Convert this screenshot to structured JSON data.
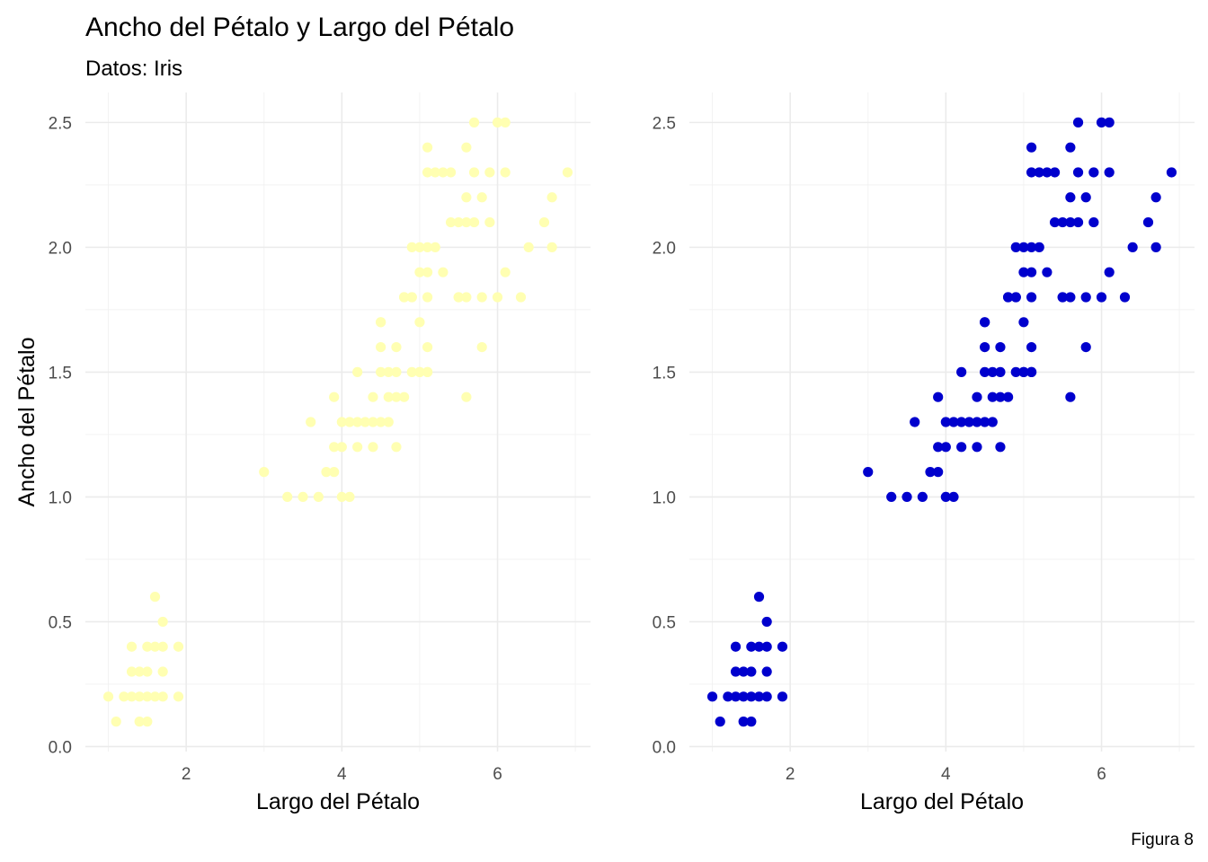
{
  "title": "Ancho del Pétalo y Largo del Pétalo",
  "subtitle": "Datos: Iris",
  "caption": "Figura 8",
  "colors": {
    "panel_left": "#FFFFB2",
    "panel_right": "#0000CD",
    "grid": "#EBEBEB"
  },
  "chart_data": [
    {
      "type": "scatter",
      "xlabel": "Largo del Pétalo",
      "ylabel": "Ancho del Pétalo",
      "x_ticks": [
        "2",
        "4",
        "6"
      ],
      "y_ticks": [
        "0.0",
        "0.5",
        "1.0",
        "1.5",
        "2.0",
        "2.5"
      ],
      "xlim": [
        0.705,
        7.195
      ],
      "ylim": [
        -0.02,
        2.62
      ],
      "grid": true,
      "color": "#FFFFB2",
      "points": [
        [
          1.0,
          0.2
        ],
        [
          1.1,
          0.1
        ],
        [
          1.2,
          0.2
        ],
        [
          1.3,
          0.2
        ],
        [
          1.3,
          0.3
        ],
        [
          1.3,
          0.4
        ],
        [
          1.4,
          0.2
        ],
        [
          1.4,
          0.3
        ],
        [
          1.4,
          0.1
        ],
        [
          1.5,
          0.2
        ],
        [
          1.5,
          0.4
        ],
        [
          1.5,
          0.1
        ],
        [
          1.5,
          0.3
        ],
        [
          1.6,
          0.2
        ],
        [
          1.6,
          0.4
        ],
        [
          1.6,
          0.6
        ],
        [
          1.7,
          0.2
        ],
        [
          1.7,
          0.3
        ],
        [
          1.7,
          0.4
        ],
        [
          1.7,
          0.5
        ],
        [
          1.9,
          0.2
        ],
        [
          1.9,
          0.4
        ],
        [
          3.0,
          1.1
        ],
        [
          3.3,
          1.0
        ],
        [
          3.5,
          1.0
        ],
        [
          3.6,
          1.3
        ],
        [
          3.7,
          1.0
        ],
        [
          3.8,
          1.1
        ],
        [
          3.9,
          1.1
        ],
        [
          3.9,
          1.2
        ],
        [
          3.9,
          1.4
        ],
        [
          4.0,
          1.0
        ],
        [
          4.0,
          1.2
        ],
        [
          4.0,
          1.3
        ],
        [
          4.1,
          1.0
        ],
        [
          4.1,
          1.3
        ],
        [
          4.2,
          1.2
        ],
        [
          4.2,
          1.3
        ],
        [
          4.2,
          1.5
        ],
        [
          4.3,
          1.3
        ],
        [
          4.4,
          1.2
        ],
        [
          4.4,
          1.3
        ],
        [
          4.4,
          1.4
        ],
        [
          4.5,
          1.3
        ],
        [
          4.5,
          1.5
        ],
        [
          4.5,
          1.7
        ],
        [
          4.5,
          1.6
        ],
        [
          4.6,
          1.3
        ],
        [
          4.6,
          1.4
        ],
        [
          4.6,
          1.5
        ],
        [
          4.7,
          1.2
        ],
        [
          4.7,
          1.4
        ],
        [
          4.7,
          1.5
        ],
        [
          4.7,
          1.6
        ],
        [
          4.8,
          1.4
        ],
        [
          4.8,
          1.8
        ],
        [
          4.9,
          1.5
        ],
        [
          4.9,
          1.8
        ],
        [
          5.0,
          1.5
        ],
        [
          5.0,
          1.7
        ],
        [
          5.1,
          1.6
        ],
        [
          5.1,
          1.5
        ],
        [
          4.5,
          1.7
        ],
        [
          4.8,
          1.8
        ],
        [
          4.9,
          1.8
        ],
        [
          4.9,
          2.0
        ],
        [
          5.0,
          2.0
        ],
        [
          5.0,
          1.5
        ],
        [
          5.0,
          1.9
        ],
        [
          5.1,
          2.4
        ],
        [
          5.1,
          2.3
        ],
        [
          5.1,
          1.9
        ],
        [
          5.1,
          2.0
        ],
        [
          5.1,
          1.8
        ],
        [
          5.1,
          1.5
        ],
        [
          5.2,
          2.3
        ],
        [
          5.2,
          2.0
        ],
        [
          5.3,
          1.9
        ],
        [
          5.3,
          2.3
        ],
        [
          5.4,
          2.3
        ],
        [
          5.4,
          2.1
        ],
        [
          5.5,
          2.1
        ],
        [
          5.5,
          1.8
        ],
        [
          5.5,
          1.8
        ],
        [
          5.6,
          2.4
        ],
        [
          5.6,
          2.2
        ],
        [
          5.6,
          2.1
        ],
        [
          5.6,
          1.8
        ],
        [
          5.6,
          1.4
        ],
        [
          5.7,
          2.5
        ],
        [
          5.7,
          2.3
        ],
        [
          5.7,
          2.1
        ],
        [
          5.8,
          2.2
        ],
        [
          5.8,
          1.8
        ],
        [
          5.8,
          1.6
        ],
        [
          5.9,
          2.3
        ],
        [
          5.9,
          2.1
        ],
        [
          6.0,
          2.5
        ],
        [
          6.0,
          1.8
        ],
        [
          6.1,
          2.5
        ],
        [
          6.1,
          2.3
        ],
        [
          6.1,
          1.9
        ],
        [
          6.3,
          1.8
        ],
        [
          6.4,
          2.0
        ],
        [
          6.6,
          2.1
        ],
        [
          6.7,
          2.2
        ],
        [
          6.7,
          2.0
        ],
        [
          6.9,
          2.3
        ]
      ]
    },
    {
      "type": "scatter",
      "xlabel": "Largo del Pétalo",
      "ylabel": "",
      "x_ticks": [
        "2",
        "4",
        "6"
      ],
      "y_ticks": [
        "0.0",
        "0.5",
        "1.0",
        "1.5",
        "2.0",
        "2.5"
      ],
      "xlim": [
        0.705,
        7.195
      ],
      "ylim": [
        -0.02,
        2.62
      ],
      "grid": true,
      "color": "#0000CD",
      "points": [
        [
          1.0,
          0.2
        ],
        [
          1.1,
          0.1
        ],
        [
          1.2,
          0.2
        ],
        [
          1.3,
          0.2
        ],
        [
          1.3,
          0.3
        ],
        [
          1.3,
          0.4
        ],
        [
          1.4,
          0.2
        ],
        [
          1.4,
          0.3
        ],
        [
          1.4,
          0.1
        ],
        [
          1.5,
          0.2
        ],
        [
          1.5,
          0.4
        ],
        [
          1.5,
          0.1
        ],
        [
          1.5,
          0.3
        ],
        [
          1.6,
          0.2
        ],
        [
          1.6,
          0.4
        ],
        [
          1.6,
          0.6
        ],
        [
          1.7,
          0.2
        ],
        [
          1.7,
          0.3
        ],
        [
          1.7,
          0.4
        ],
        [
          1.7,
          0.5
        ],
        [
          1.9,
          0.2
        ],
        [
          1.9,
          0.4
        ],
        [
          3.0,
          1.1
        ],
        [
          3.3,
          1.0
        ],
        [
          3.5,
          1.0
        ],
        [
          3.6,
          1.3
        ],
        [
          3.7,
          1.0
        ],
        [
          3.8,
          1.1
        ],
        [
          3.9,
          1.1
        ],
        [
          3.9,
          1.2
        ],
        [
          3.9,
          1.4
        ],
        [
          4.0,
          1.0
        ],
        [
          4.0,
          1.2
        ],
        [
          4.0,
          1.3
        ],
        [
          4.1,
          1.0
        ],
        [
          4.1,
          1.3
        ],
        [
          4.2,
          1.2
        ],
        [
          4.2,
          1.3
        ],
        [
          4.2,
          1.5
        ],
        [
          4.3,
          1.3
        ],
        [
          4.4,
          1.2
        ],
        [
          4.4,
          1.3
        ],
        [
          4.4,
          1.4
        ],
        [
          4.5,
          1.3
        ],
        [
          4.5,
          1.5
        ],
        [
          4.5,
          1.7
        ],
        [
          4.5,
          1.6
        ],
        [
          4.6,
          1.3
        ],
        [
          4.6,
          1.4
        ],
        [
          4.6,
          1.5
        ],
        [
          4.7,
          1.2
        ],
        [
          4.7,
          1.4
        ],
        [
          4.7,
          1.5
        ],
        [
          4.7,
          1.6
        ],
        [
          4.8,
          1.4
        ],
        [
          4.8,
          1.8
        ],
        [
          4.9,
          1.5
        ],
        [
          4.9,
          1.8
        ],
        [
          5.0,
          1.5
        ],
        [
          5.0,
          1.7
        ],
        [
          5.1,
          1.6
        ],
        [
          5.1,
          1.5
        ],
        [
          4.5,
          1.7
        ],
        [
          4.8,
          1.8
        ],
        [
          4.9,
          1.8
        ],
        [
          4.9,
          2.0
        ],
        [
          5.0,
          2.0
        ],
        [
          5.0,
          1.5
        ],
        [
          5.0,
          1.9
        ],
        [
          5.1,
          2.4
        ],
        [
          5.1,
          2.3
        ],
        [
          5.1,
          1.9
        ],
        [
          5.1,
          2.0
        ],
        [
          5.1,
          1.8
        ],
        [
          5.1,
          1.5
        ],
        [
          5.2,
          2.3
        ],
        [
          5.2,
          2.0
        ],
        [
          5.3,
          1.9
        ],
        [
          5.3,
          2.3
        ],
        [
          5.4,
          2.3
        ],
        [
          5.4,
          2.1
        ],
        [
          5.5,
          2.1
        ],
        [
          5.5,
          1.8
        ],
        [
          5.5,
          1.8
        ],
        [
          5.6,
          2.4
        ],
        [
          5.6,
          2.2
        ],
        [
          5.6,
          2.1
        ],
        [
          5.6,
          1.8
        ],
        [
          5.6,
          1.4
        ],
        [
          5.7,
          2.5
        ],
        [
          5.7,
          2.3
        ],
        [
          5.7,
          2.1
        ],
        [
          5.8,
          2.2
        ],
        [
          5.8,
          1.8
        ],
        [
          5.8,
          1.6
        ],
        [
          5.9,
          2.3
        ],
        [
          5.9,
          2.1
        ],
        [
          6.0,
          2.5
        ],
        [
          6.0,
          1.8
        ],
        [
          6.1,
          2.5
        ],
        [
          6.1,
          2.3
        ],
        [
          6.1,
          1.9
        ],
        [
          6.3,
          1.8
        ],
        [
          6.4,
          2.0
        ],
        [
          6.6,
          2.1
        ],
        [
          6.7,
          2.2
        ],
        [
          6.7,
          2.0
        ],
        [
          6.9,
          2.3
        ]
      ]
    }
  ]
}
